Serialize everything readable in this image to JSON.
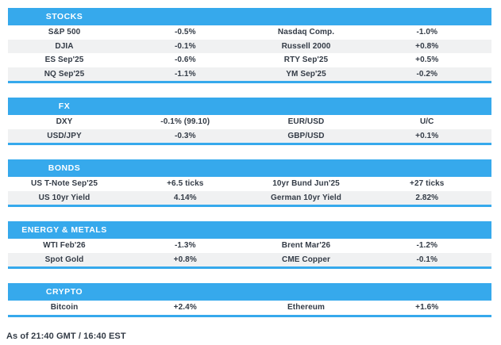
{
  "colors": {
    "accent": "#36a9ec",
    "row_alt": "#f0f1f2",
    "text": "#333b46",
    "header_text": "#ffffff"
  },
  "footer": "As of 21:40 GMT / 16:40 EST",
  "sections": [
    {
      "title": "STOCKS",
      "rows": [
        [
          "S&P 500",
          "-0.5%",
          "Nasdaq Comp.",
          "-1.0%"
        ],
        [
          "DJIA",
          "-0.1%",
          "Russell 2000",
          "+0.8%"
        ],
        [
          "ES Sep'25",
          "-0.6%",
          "RTY Sep'25",
          "+0.5%"
        ],
        [
          "NQ Sep'25",
          "-1.1%",
          "YM Sep'25",
          "-0.2%"
        ]
      ]
    },
    {
      "title": "FX",
      "rows": [
        [
          "DXY",
          "-0.1% (99.10)",
          "EUR/USD",
          "U/C"
        ],
        [
          "USD/JPY",
          "-0.3%",
          "GBP/USD",
          "+0.1%"
        ]
      ]
    },
    {
      "title": "BONDS",
      "rows": [
        [
          "US T-Note Sep'25",
          "+6.5 ticks",
          "10yr Bund Jun'25",
          "+27 ticks"
        ],
        [
          "US 10yr Yield",
          "4.14%",
          "German 10yr Yield",
          "2.82%"
        ]
      ]
    },
    {
      "title": "ENERGY & METALS",
      "rows": [
        [
          "WTI Feb'26",
          "-1.3%",
          "Brent Mar'26",
          "-1.2%"
        ],
        [
          "Spot Gold",
          "+0.8%",
          "CME Copper",
          "-0.1%"
        ]
      ]
    },
    {
      "title": "CRYPTO",
      "rows": [
        [
          "Bitcoin",
          "+2.4%",
          "Ethereum",
          "+1.6%"
        ]
      ]
    }
  ],
  "chart_data": {
    "type": "table",
    "title": "Market snapshot",
    "tables": [
      {
        "section": "STOCKS",
        "pairs": [
          {
            "instrument": "S&P 500",
            "change": "-0.5%"
          },
          {
            "instrument": "Nasdaq Comp.",
            "change": "-1.0%"
          },
          {
            "instrument": "DJIA",
            "change": "-0.1%"
          },
          {
            "instrument": "Russell 2000",
            "change": "+0.8%"
          },
          {
            "instrument": "ES Sep'25",
            "change": "-0.6%"
          },
          {
            "instrument": "RTY Sep'25",
            "change": "+0.5%"
          },
          {
            "instrument": "NQ Sep'25",
            "change": "-1.1%"
          },
          {
            "instrument": "YM Sep'25",
            "change": "-0.2%"
          }
        ]
      },
      {
        "section": "FX",
        "pairs": [
          {
            "instrument": "DXY",
            "change": "-0.1% (99.10)"
          },
          {
            "instrument": "EUR/USD",
            "change": "U/C"
          },
          {
            "instrument": "USD/JPY",
            "change": "-0.3%"
          },
          {
            "instrument": "GBP/USD",
            "change": "+0.1%"
          }
        ]
      },
      {
        "section": "BONDS",
        "pairs": [
          {
            "instrument": "US T-Note Sep'25",
            "change": "+6.5 ticks"
          },
          {
            "instrument": "10yr Bund Jun'25",
            "change": "+27 ticks"
          },
          {
            "instrument": "US 10yr Yield",
            "change": "4.14%"
          },
          {
            "instrument": "German 10yr Yield",
            "change": "2.82%"
          }
        ]
      },
      {
        "section": "ENERGY & METALS",
        "pairs": [
          {
            "instrument": "WTI Feb'26",
            "change": "-1.3%"
          },
          {
            "instrument": "Brent Mar'26",
            "change": "-1.2%"
          },
          {
            "instrument": "Spot Gold",
            "change": "+0.8%"
          },
          {
            "instrument": "CME Copper",
            "change": "-0.1%"
          }
        ]
      },
      {
        "section": "CRYPTO",
        "pairs": [
          {
            "instrument": "Bitcoin",
            "change": "+2.4%"
          },
          {
            "instrument": "Ethereum",
            "change": "+1.6%"
          }
        ]
      }
    ],
    "footnote": "As of 21:40 GMT / 16:40 EST"
  }
}
